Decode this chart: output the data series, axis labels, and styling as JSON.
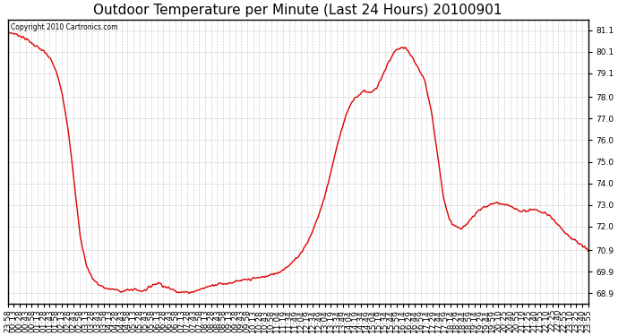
{
  "title": "Outdoor Temperature per Minute (Last 24 Hours) 20100901",
  "copyright_text": "Copyright 2010 Cartronics.com",
  "line_color": "#dd0000",
  "bg_color": "#ffffff",
  "plot_bg_color": "#ffffff",
  "grid_color": "#bbbbbb",
  "ylim": [
    68.4,
    81.6
  ],
  "yticks": [
    68.9,
    69.9,
    70.9,
    72.0,
    73.0,
    74.0,
    75.0,
    76.0,
    77.0,
    78.0,
    79.1,
    80.1,
    81.1
  ],
  "title_fontsize": 11,
  "tick_fontsize": 6.5,
  "line_width": 1.0,
  "xtick_labels": [
    "23:58",
    "00:13",
    "00:28",
    "00:43",
    "00:58",
    "01:13",
    "01:28",
    "01:43",
    "01:58",
    "02:13",
    "02:28",
    "02:43",
    "02:58",
    "03:13",
    "03:28",
    "03:43",
    "03:58",
    "04:13",
    "04:28",
    "04:43",
    "04:58",
    "05:13",
    "05:28",
    "05:43",
    "05:58",
    "06:13",
    "06:28",
    "06:43",
    "06:58",
    "07:13",
    "07:28",
    "07:43",
    "07:58",
    "08:13",
    "08:28",
    "08:43",
    "08:58",
    "09:13",
    "09:28",
    "09:43",
    "09:58",
    "10:13",
    "10:28",
    "10:43",
    "10:58",
    "11:04",
    "11:19",
    "11:34",
    "11:49",
    "12:04",
    "12:19",
    "12:34",
    "12:49",
    "13:04",
    "13:19",
    "13:34",
    "13:49",
    "14:04",
    "14:19",
    "14:34",
    "14:49",
    "15:04",
    "15:19",
    "15:34",
    "15:44",
    "15:59",
    "16:14",
    "16:29",
    "16:44",
    "16:59",
    "17:14",
    "17:29",
    "17:44",
    "17:59",
    "18:14",
    "18:29",
    "18:44",
    "18:59",
    "19:14",
    "19:29",
    "19:44",
    "19:59",
    "20:10",
    "20:25",
    "20:40",
    "20:55",
    "21:10",
    "21:25",
    "21:40",
    "21:55",
    "22:10",
    "22:25",
    "22:40",
    "22:55",
    "23:10",
    "23:25",
    "23:40",
    "23:55"
  ],
  "curve_x": [
    0,
    1,
    2,
    3,
    4,
    5,
    6,
    7,
    8,
    9,
    10,
    11,
    12,
    13,
    14,
    15,
    16,
    17,
    18,
    19,
    20,
    21,
    22,
    23,
    24,
    25,
    26,
    27,
    28,
    29,
    30,
    31,
    32,
    33,
    34,
    35,
    36,
    37,
    38,
    39,
    40,
    41,
    42,
    43,
    44,
    45,
    46,
    47,
    48,
    49,
    50,
    51,
    52,
    53,
    54,
    55,
    56,
    57,
    58,
    59,
    60,
    61,
    62,
    63,
    64,
    65,
    66,
    67,
    68,
    69,
    70,
    71,
    72,
    73,
    74,
    75,
    76,
    77,
    78,
    79,
    80,
    81,
    82,
    83,
    84,
    85,
    86,
    87,
    88,
    89,
    90,
    91,
    92,
    93,
    94,
    95,
    96
  ],
  "curve_y": [
    81.0,
    80.95,
    80.85,
    80.7,
    80.5,
    80.3,
    80.1,
    79.8,
    79.2,
    78.2,
    76.5,
    74.0,
    71.5,
    70.2,
    69.6,
    69.3,
    69.15,
    69.1,
    69.05,
    69.0,
    69.05,
    69.1,
    69.0,
    69.1,
    69.3,
    69.4,
    69.2,
    69.1,
    69.0,
    68.95,
    68.95,
    69.0,
    69.1,
    69.2,
    69.3,
    69.35,
    69.35,
    69.4,
    69.45,
    69.5,
    69.55,
    69.6,
    69.65,
    69.7,
    69.8,
    69.9,
    70.1,
    70.3,
    70.6,
    71.0,
    71.5,
    72.2,
    73.0,
    74.0,
    75.2,
    76.3,
    77.2,
    77.8,
    78.1,
    78.3,
    78.2,
    78.4,
    79.0,
    79.6,
    80.1,
    80.3,
    80.2,
    79.8,
    79.3,
    78.7,
    77.5,
    75.5,
    73.5,
    72.3,
    72.0,
    71.9,
    72.1,
    72.5,
    72.8,
    72.9,
    73.05,
    73.1,
    73.0,
    72.95,
    72.8,
    72.7,
    72.75,
    72.8,
    72.7,
    72.6,
    72.4,
    72.1,
    71.8,
    71.5,
    71.3,
    71.1,
    70.9
  ]
}
